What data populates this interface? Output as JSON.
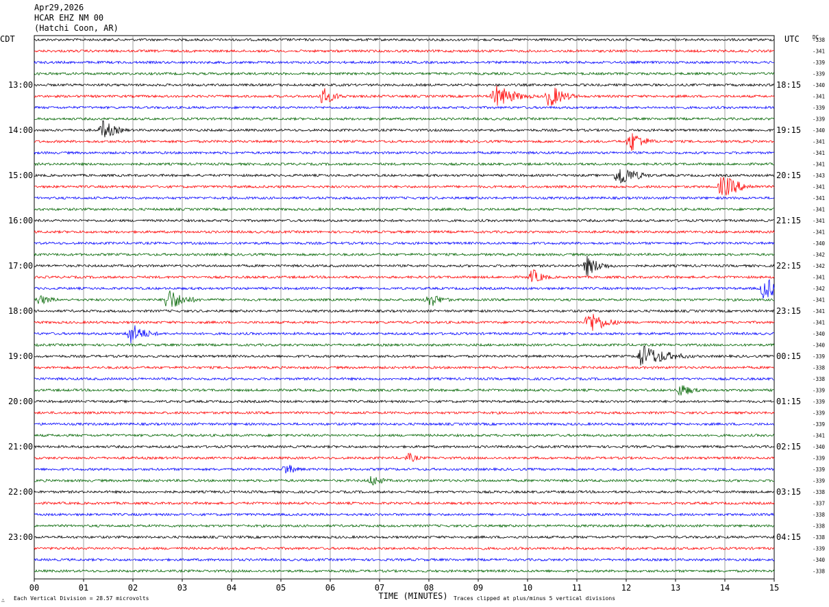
{
  "header": {
    "date": "Apr29,2026",
    "station": "HCAR EHZ NM 00",
    "location": "(Hatchi Coon, AR)"
  },
  "left_axis_label": "CDT",
  "right_axis_label": "UTC",
  "dc_label": "DC",
  "footer": {
    "xlabel": "TIME (MINUTES)",
    "scale_note": "Each Vertical Division =   28.57 microvolts",
    "clip_note": "Traces clipped at plus/minus 5 vertical divisions",
    "logo_mark": "∴"
  },
  "colors": {
    "black": "#000000",
    "red": "#ff0000",
    "blue": "#0000ff",
    "green": "#006400",
    "grid": "#888888"
  },
  "chart_data": {
    "type": "helicorder",
    "x_ticks": [
      "00",
      "01",
      "02",
      "03",
      "04",
      "05",
      "06",
      "07",
      "08",
      "09",
      "10",
      "11",
      "12",
      "13",
      "14",
      "15"
    ],
    "xlim": [
      0,
      15
    ],
    "trace_minutes": 15,
    "trace_count": 48,
    "color_cycle": [
      "black",
      "red",
      "blue",
      "green"
    ],
    "cdt_hour_labels": [
      "13:00",
      "14:00",
      "15:00",
      "16:00",
      "17:00",
      "18:00",
      "19:00",
      "20:00",
      "21:00",
      "22:00",
      "23:00"
    ],
    "utc_hour_labels": [
      "18:15",
      "19:15",
      "20:15",
      "21:15",
      "22:15",
      "23:15",
      "00:15",
      "01:15",
      "02:15",
      "03:15",
      "04:15"
    ],
    "hour_label_first_trace": 4,
    "dc_offsets": [
      "-338",
      "-341",
      "-339",
      "-339",
      "-340",
      "-341",
      "-339",
      "-339",
      "-340",
      "-341",
      "-341",
      "-341",
      "-343",
      "-341",
      "-341",
      "-341",
      "-341",
      "-341",
      "-340",
      "-342",
      "-342",
      "-341",
      "-342",
      "-341",
      "-341",
      "-341",
      "-340",
      "-340",
      "-339",
      "-338",
      "-338",
      "-339",
      "-339",
      "-339",
      "-339",
      "-341",
      "-340",
      "-339",
      "-339",
      "-339",
      "-338",
      "-337",
      "-338",
      "-338",
      "-338",
      "-339",
      "-340",
      "-338"
    ],
    "events": [
      {
        "trace": 5,
        "minute": 5.85,
        "amp": 4.5,
        "dur": 0.8
      },
      {
        "trace": 5,
        "minute": 9.35,
        "amp": 6,
        "dur": 1.2
      },
      {
        "trace": 5,
        "minute": 10.45,
        "amp": 6,
        "dur": 0.9
      },
      {
        "trace": 8,
        "minute": 1.4,
        "amp": 5,
        "dur": 0.8
      },
      {
        "trace": 9,
        "minute": 12.1,
        "amp": 5.5,
        "dur": 0.8
      },
      {
        "trace": 12,
        "minute": 11.85,
        "amp": 6,
        "dur": 1.0
      },
      {
        "trace": 13,
        "minute": 13.95,
        "amp": 6,
        "dur": 1.1
      },
      {
        "trace": 21,
        "minute": 10.1,
        "amp": 4,
        "dur": 0.7
      },
      {
        "trace": 20,
        "minute": 11.2,
        "amp": 5,
        "dur": 0.9
      },
      {
        "trace": 22,
        "minute": 14.8,
        "amp": 6,
        "dur": 0.9
      },
      {
        "trace": 23,
        "minute": 0.1,
        "amp": 2.5,
        "dur": 0.9
      },
      {
        "trace": 23,
        "minute": 2.7,
        "amp": 6,
        "dur": 1.0
      },
      {
        "trace": 23,
        "minute": 8.0,
        "amp": 4,
        "dur": 0.8
      },
      {
        "trace": 26,
        "minute": 1.95,
        "amp": 5.5,
        "dur": 0.9
      },
      {
        "trace": 25,
        "minute": 11.25,
        "amp": 6,
        "dur": 1.0
      },
      {
        "trace": 28,
        "minute": 12.3,
        "amp": 6,
        "dur": 1.6
      },
      {
        "trace": 31,
        "minute": 13.1,
        "amp": 3.5,
        "dur": 0.8
      },
      {
        "trace": 37,
        "minute": 7.6,
        "amp": 2.5,
        "dur": 0.6
      },
      {
        "trace": 38,
        "minute": 5.1,
        "amp": 3,
        "dur": 0.7
      },
      {
        "trace": 39,
        "minute": 6.85,
        "amp": 3,
        "dur": 0.7
      }
    ]
  }
}
